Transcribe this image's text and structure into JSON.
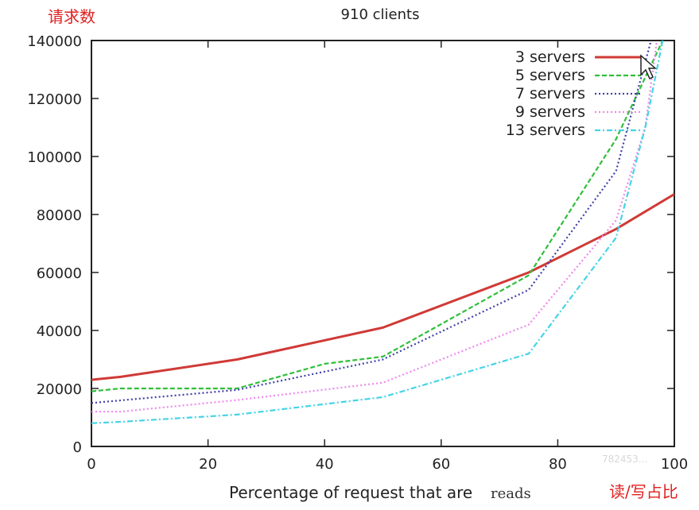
{
  "annotations": {
    "y_note": "请求数",
    "x_note": "读/写占比"
  },
  "watermark": "782453...",
  "chart_data": {
    "type": "line",
    "title": "910 clients",
    "xlabel": "Percentage of request that are",
    "xlabel_emphasis": "reads",
    "ylabel": "",
    "xlim": [
      0,
      100
    ],
    "ylim": [
      0,
      140000
    ],
    "x_ticks": [
      0,
      20,
      40,
      60,
      80,
      100
    ],
    "y_ticks": [
      0,
      20000,
      40000,
      60000,
      80000,
      100000,
      120000,
      140000
    ],
    "x_tick_labels": [
      "0",
      "20",
      "40",
      "60",
      "80",
      "100"
    ],
    "y_tick_labels": [
      "0",
      "20000",
      "40000",
      "60000",
      "80000",
      "100000",
      "120000",
      "140000"
    ],
    "grid": false,
    "legend_position": "top-right",
    "series": [
      {
        "name": "3 servers",
        "color": "#d03a36",
        "style": "solid",
        "x": [
          0,
          5,
          25,
          50,
          75,
          90,
          100
        ],
        "y": [
          23000,
          24000,
          30000,
          41000,
          60000,
          75000,
          87000
        ]
      },
      {
        "name": "5 servers",
        "color": "#2fbf3a",
        "style": "dashed",
        "x": [
          0,
          5,
          25,
          40,
          50,
          75,
          90,
          98
        ],
        "y": [
          19000,
          20000,
          20000,
          28500,
          31000,
          59000,
          106000,
          140000
        ]
      },
      {
        "name": "7 servers",
        "color": "#4040a8",
        "style": "dotted",
        "x": [
          0,
          25,
          50,
          75,
          90,
          96
        ],
        "y": [
          15000,
          19500,
          30000,
          54000,
          95000,
          140000
        ]
      },
      {
        "name": "9 servers",
        "color": "#ee88ee",
        "style": "dotted",
        "x": [
          0,
          5,
          25,
          50,
          75,
          90,
          95,
          97
        ],
        "y": [
          12000,
          12000,
          16000,
          22000,
          42000,
          78000,
          110000,
          140000
        ]
      },
      {
        "name": "13 servers",
        "color": "#44d4e6",
        "style": "dashdot",
        "x": [
          0,
          5,
          25,
          50,
          75,
          90,
          95,
          98
        ],
        "y": [
          8000,
          8500,
          11000,
          17000,
          32000,
          72000,
          110000,
          140000
        ]
      }
    ]
  }
}
